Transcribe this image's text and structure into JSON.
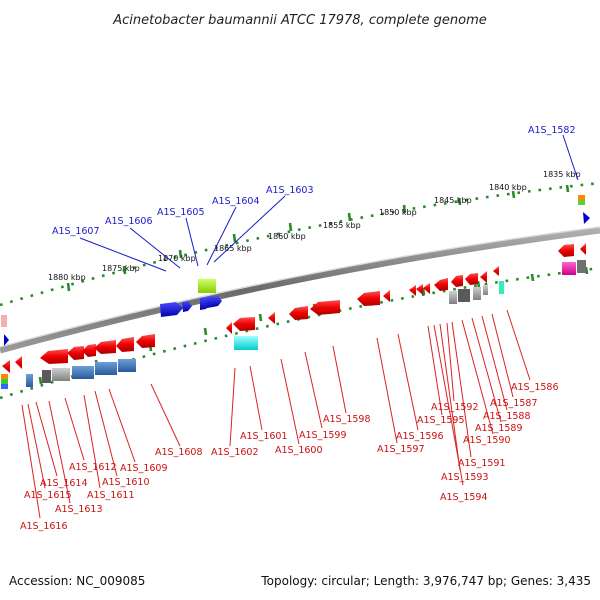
{
  "title": "Acinetobacter baumannii ATCC 17978, complete genome",
  "footer": {
    "accession": "Accession: NC_009085",
    "summary": "Topology: circular; Length: 3,976,747 bp; Genes: 3,435"
  },
  "scale": {
    "unit": "kbp",
    "ticks": [
      "1835 kbp",
      "1840 kbp",
      "1845 kbp",
      "1850 kbp",
      "1855 kbp",
      "1860 kbp",
      "1865 kbp",
      "1870 kbp",
      "1875 kbp",
      "1880 kbp"
    ]
  },
  "colors": {
    "forward_label": "#1a1acc",
    "reverse_label": "#cc1111",
    "backbone": "#8a8a8a",
    "tick_major": "#2a8a2a"
  },
  "genes_top": [
    {
      "id": "A1S_1582"
    },
    {
      "id": "A1S_1603"
    },
    {
      "id": "A1S_1604"
    },
    {
      "id": "A1S_1605"
    },
    {
      "id": "A1S_1606"
    },
    {
      "id": "A1S_1607"
    }
  ],
  "genes_bottom": [
    {
      "id": "A1S_1586"
    },
    {
      "id": "A1S_1587"
    },
    {
      "id": "A1S_1588"
    },
    {
      "id": "A1S_1589"
    },
    {
      "id": "A1S_1590"
    },
    {
      "id": "A1S_1591"
    },
    {
      "id": "A1S_1592"
    },
    {
      "id": "A1S_1593"
    },
    {
      "id": "A1S_1594"
    },
    {
      "id": "A1S_1595"
    },
    {
      "id": "A1S_1596"
    },
    {
      "id": "A1S_1597"
    },
    {
      "id": "A1S_1598"
    },
    {
      "id": "A1S_1599"
    },
    {
      "id": "A1S_1600"
    },
    {
      "id": "A1S_1601"
    },
    {
      "id": "A1S_1602"
    },
    {
      "id": "A1S_1608"
    },
    {
      "id": "A1S_1609"
    },
    {
      "id": "A1S_1610"
    },
    {
      "id": "A1S_1611"
    },
    {
      "id": "A1S_1612"
    },
    {
      "id": "A1S_1613"
    },
    {
      "id": "A1S_1614"
    },
    {
      "id": "A1S_1615"
    },
    {
      "id": "A1S_1616"
    }
  ]
}
